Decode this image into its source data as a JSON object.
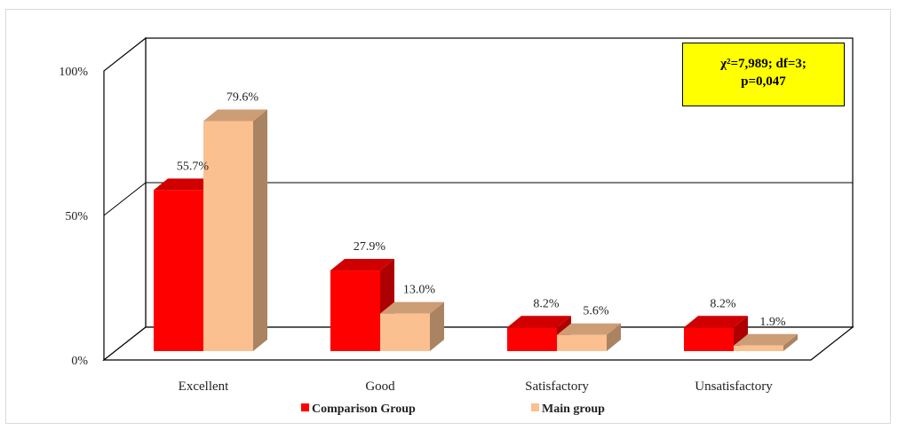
{
  "chart_data": {
    "type": "bar",
    "categories": [
      "Excellent",
      "Good",
      "Satisfactory",
      "Unsatisfactory"
    ],
    "series": [
      {
        "name": "Comparison Group",
        "values": [
          55.7,
          27.9,
          8.2,
          8.2
        ],
        "labels": [
          "55.7%",
          "27.9%",
          "8.2%",
          "8.2%"
        ],
        "color": "#ff0000"
      },
      {
        "name": "Main group",
        "values": [
          79.6,
          13.0,
          5.6,
          1.9
        ],
        "labels": [
          "79.6%",
          "13.0%",
          "5.6%",
          "1.9%"
        ],
        "color": "#fac090"
      }
    ],
    "y_ticks": [
      "0%",
      "50%",
      "100%"
    ],
    "ylim": [
      0,
      100
    ],
    "grid": true,
    "legend_position": "bottom",
    "style": "3d-clustered-bar"
  },
  "annotation": {
    "line1": "χ²=7,989; df=3;",
    "line2": "p=0,047"
  }
}
